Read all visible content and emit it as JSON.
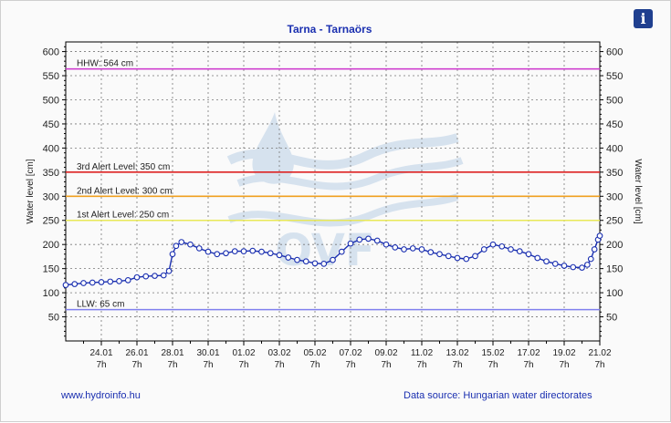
{
  "info_icon": "info-icon",
  "footer": {
    "link": "www.hydroinfo.hu",
    "source": "Data source: Hungarian water directorates"
  },
  "watermark": {
    "text": "OVF"
  },
  "chart_data": {
    "type": "line",
    "title": "Tarna - Tarnaörs",
    "ylabel": "Water level [cm]",
    "ylim": [
      0,
      620
    ],
    "yticks": [
      50,
      100,
      150,
      200,
      250,
      300,
      350,
      400,
      450,
      500,
      550,
      600
    ],
    "grid": true,
    "xlim": [
      "22.01 07h",
      "21.02 07h"
    ],
    "xticks": [
      {
        "date": "24.01",
        "hour": "7h",
        "day": 2
      },
      {
        "date": "26.01",
        "hour": "7h",
        "day": 4
      },
      {
        "date": "28.01",
        "hour": "7h",
        "day": 6
      },
      {
        "date": "30.01",
        "hour": "7h",
        "day": 8
      },
      {
        "date": "01.02",
        "hour": "7h",
        "day": 10
      },
      {
        "date": "03.02",
        "hour": "7h",
        "day": 12
      },
      {
        "date": "05.02",
        "hour": "7h",
        "day": 14
      },
      {
        "date": "07.02",
        "hour": "7h",
        "day": 16
      },
      {
        "date": "09.02",
        "hour": "7h",
        "day": 18
      },
      {
        "date": "11.02",
        "hour": "7h",
        "day": 20
      },
      {
        "date": "13.02",
        "hour": "7h",
        "day": 22
      },
      {
        "date": "15.02",
        "hour": "7h",
        "day": 24
      },
      {
        "date": "17.02",
        "hour": "7h",
        "day": 26
      },
      {
        "date": "19.02",
        "hour": "7h",
        "day": 28
      },
      {
        "date": "21.02",
        "hour": "7h",
        "day": 30
      }
    ],
    "levels": [
      {
        "label": "HHW: 564 cm",
        "value": 564,
        "color": "#cc33cc"
      },
      {
        "label": "3rd Alert Level: 350 cm",
        "value": 350,
        "color": "#dd2222"
      },
      {
        "label": "2nd Alert Level: 300 cm",
        "value": 300,
        "color": "#f0a020"
      },
      {
        "label": "1st Alert Level: 250 cm",
        "value": 250,
        "color": "#e8e858"
      },
      {
        "label": "LLW: 65 cm",
        "value": 65,
        "color": "#8080ee"
      }
    ],
    "series": [
      {
        "color": "#1a2fb0",
        "points": [
          [
            0,
            116
          ],
          [
            0.5,
            118
          ],
          [
            1,
            120
          ],
          [
            1.5,
            121
          ],
          [
            2,
            122
          ],
          [
            2.5,
            123
          ],
          [
            3,
            124
          ],
          [
            3.5,
            126
          ],
          [
            4,
            132
          ],
          [
            4.5,
            134
          ],
          [
            5,
            135
          ],
          [
            5.5,
            136
          ],
          [
            5.8,
            145
          ],
          [
            6,
            180
          ],
          [
            6.2,
            197
          ],
          [
            6.5,
            205
          ],
          [
            7,
            200
          ],
          [
            7.5,
            192
          ],
          [
            8,
            185
          ],
          [
            8.5,
            180
          ],
          [
            9,
            182
          ],
          [
            9.5,
            186
          ],
          [
            10,
            186
          ],
          [
            10.5,
            187
          ],
          [
            11,
            185
          ],
          [
            11.5,
            182
          ],
          [
            12,
            178
          ],
          [
            12.5,
            173
          ],
          [
            13,
            168
          ],
          [
            13.5,
            165
          ],
          [
            14,
            161
          ],
          [
            14.5,
            160
          ],
          [
            15,
            168
          ],
          [
            15.5,
            185
          ],
          [
            16,
            202
          ],
          [
            16.5,
            210
          ],
          [
            17,
            212
          ],
          [
            17.5,
            208
          ],
          [
            18,
            200
          ],
          [
            18.5,
            194
          ],
          [
            19,
            190
          ],
          [
            19.5,
            192
          ],
          [
            20,
            190
          ],
          [
            20.5,
            184
          ],
          [
            21,
            180
          ],
          [
            21.5,
            176
          ],
          [
            22,
            172
          ],
          [
            22.5,
            170
          ],
          [
            23,
            176
          ],
          [
            23.5,
            190
          ],
          [
            24,
            200
          ],
          [
            24.5,
            196
          ],
          [
            25,
            190
          ],
          [
            25.5,
            186
          ],
          [
            26,
            180
          ],
          [
            26.5,
            172
          ],
          [
            27,
            165
          ],
          [
            27.5,
            160
          ],
          [
            28,
            156
          ],
          [
            28.5,
            153
          ],
          [
            29,
            152
          ],
          [
            29.3,
            158
          ],
          [
            29.5,
            170
          ],
          [
            29.7,
            190
          ],
          [
            29.9,
            210
          ],
          [
            30,
            218
          ]
        ]
      }
    ]
  }
}
